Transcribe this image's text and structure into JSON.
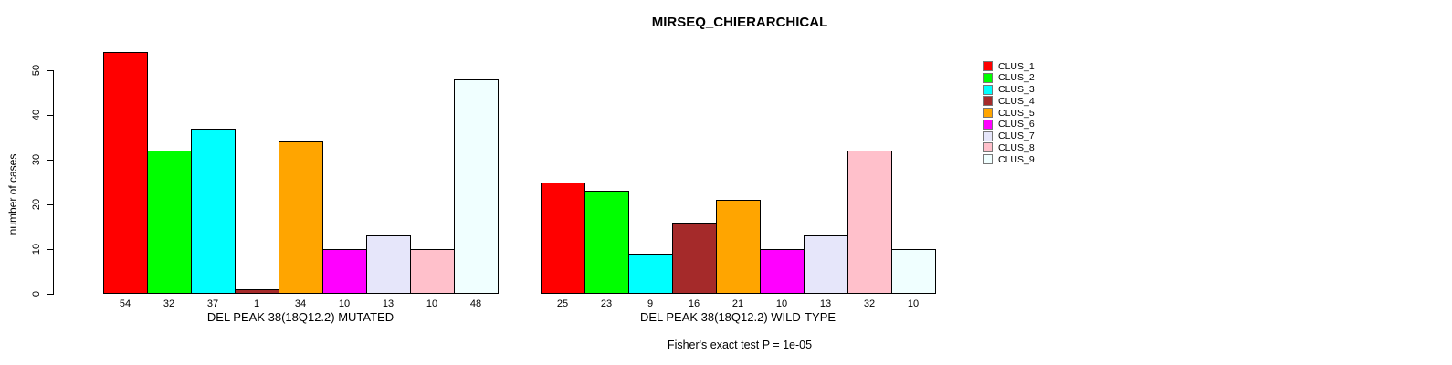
{
  "chart_data": {
    "type": "bar",
    "title": "MIRSEQ_CHIERARCHICAL",
    "ylabel": "number of cases",
    "ylim": [
      0,
      54
    ],
    "yticks": [
      0,
      10,
      20,
      30,
      40,
      50
    ],
    "grid": false,
    "legend_position": "right",
    "bar_border_color": "#000000",
    "clusters": [
      {
        "name": "CLUS_1",
        "color": "#FF0000"
      },
      {
        "name": "CLUS_2",
        "color": "#00FF00"
      },
      {
        "name": "CLUS_3",
        "color": "#00FFFF"
      },
      {
        "name": "CLUS_4",
        "color": "#A52A2A"
      },
      {
        "name": "CLUS_5",
        "color": "#FFA500"
      },
      {
        "name": "CLUS_6",
        "color": "#FF00FF"
      },
      {
        "name": "CLUS_7",
        "color": "#E6E6FA"
      },
      {
        "name": "CLUS_8",
        "color": "#FFC0CB"
      },
      {
        "name": "CLUS_9",
        "color": "#F0FFFF"
      }
    ],
    "groups": [
      {
        "xlabel": "DEL PEAK 38(18Q12.2) MUTATED",
        "values": [
          54,
          32,
          37,
          1,
          34,
          10,
          13,
          10,
          48
        ]
      },
      {
        "xlabel": "DEL PEAK 38(18Q12.2) WILD-TYPE",
        "values": [
          25,
          23,
          9,
          16,
          21,
          10,
          13,
          32,
          10
        ]
      }
    ],
    "footnote": "Fisher's exact test P = 1e-05"
  }
}
